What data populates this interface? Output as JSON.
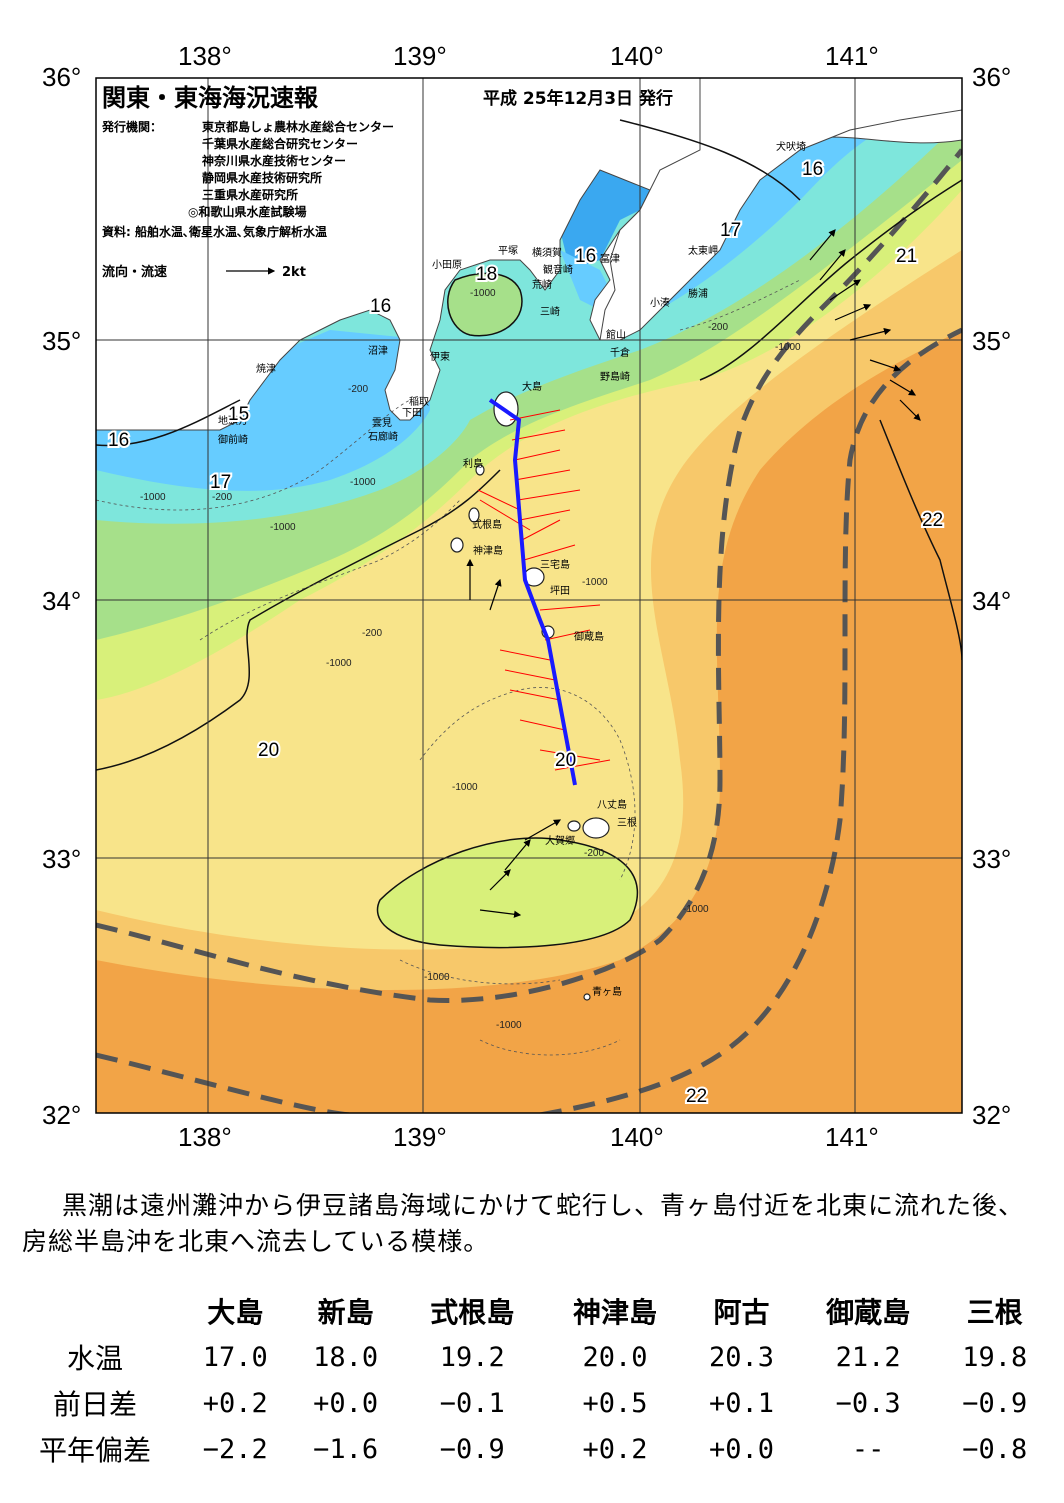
{
  "header": {
    "title": "関東・東海海況速報",
    "issue_date": "平成 25年12月3日 発行",
    "publisher_label": "発行機関：",
    "publishers": [
      "東京都島しょ農林水産総合センター",
      "千葉県水産総合研究センター",
      "神奈川県水産技術センター",
      "静岡県水産技術研究所",
      "三重県水産研究所",
      "◎和歌山県水産試験場"
    ],
    "sources": "資料: 船舶水温､衛星水温､気象庁解析水温",
    "flow_legend": "流向・流速",
    "flow_scale": "2kt"
  },
  "axes": {
    "lon_labels_top": [
      "138°",
      "139°",
      "140°",
      "141°"
    ],
    "lon_labels_bottom": [
      "138°",
      "139°",
      "140°",
      "141°"
    ],
    "lat_labels_left": [
      "36°",
      "35°",
      "34°",
      "33°",
      "32°"
    ],
    "lat_labels_right": [
      "36°",
      "35°",
      "34°",
      "33°",
      "32°"
    ]
  },
  "places": {
    "inubosaki": "犬吠埼",
    "taitomisaki": "太東岬",
    "katsuura": "勝浦",
    "kominato": "小湊",
    "futtsu": "富津",
    "kannonzaki": "観音崎",
    "yokosuka": "横須賀",
    "hiratsuka": "平塚",
    "odawara": "小田原",
    "arasaki": "荒崎",
    "misaki": "三崎",
    "tateyama": "館山",
    "chikura": "千倉",
    "nojimazaki": "野島崎",
    "numazu": "沼津",
    "ito": "伊東",
    "inatori": "稲取",
    "shimoda": "下田",
    "mera": "雲見",
    "irozaki": "石廊崎",
    "yaizu": "焼津",
    "jitogata": "地頭方",
    "omaezaki": "御前崎",
    "oshima": "大島",
    "toshima": "利島",
    "shikinejima": "式根島",
    "kozushima": "神津島",
    "miyakejima": "三宅島",
    "tsubota": "坪田",
    "mikurajima": "御蔵島",
    "hachijojima": "八丈島",
    "mitsune": "三根",
    "okago": "大賀郷",
    "aogashima": "青ヶ島"
  },
  "isotherm_labels": [
    "16",
    "15",
    "17",
    "16",
    "18",
    "16",
    "16",
    "17",
    "21",
    "22",
    "20",
    "20",
    "22"
  ],
  "depth_labels": [
    "-200",
    "-1000",
    "-200",
    "-1000",
    "-1000",
    "-200",
    "-1000",
    "-1000",
    "-200",
    "-1000",
    "-1000",
    "-200",
    "-1000",
    "-1000",
    "-1000",
    "-1000"
  ],
  "summary": "黒潮は遠州灘沖から伊豆諸島海域にかけて蛇行し、青ヶ島付近を北東に流れた後、房総半島沖を北東へ流去している模様。",
  "stations_table": {
    "columns": [
      "大島",
      "新島",
      "式根島",
      "神津島",
      "阿古",
      "御蔵島",
      "三根"
    ],
    "rows": [
      {
        "label": "水温",
        "values": [
          "17.0",
          "18.0",
          "19.2",
          "20.0",
          "20.3",
          "21.2",
          "19.8"
        ]
      },
      {
        "label": "前日差",
        "values": [
          "+0.2",
          "+0.0",
          "−0.1",
          "+0.5",
          "+0.1",
          "−0.3",
          "−0.9"
        ]
      },
      {
        "label": "平年偏差",
        "values": [
          "−2.2",
          "−1.6",
          "−0.9",
          "+0.2",
          "+0.0",
          "--",
          "−0.8"
        ]
      }
    ]
  },
  "colors": {
    "land": "#ffffff",
    "very_cold": "#3aa8f0",
    "cold": "#66ccff",
    "cool": "#7ee6dc",
    "mild": "#a6e08a",
    "temperate": "#d8f07a",
    "warm_yellow": "#f8e48a",
    "warm": "#f7c86a",
    "hot": "#f2a447",
    "kuroshio_axis": "#555555",
    "ship_track": "#1a1aff",
    "current_red": "#ff0000"
  }
}
